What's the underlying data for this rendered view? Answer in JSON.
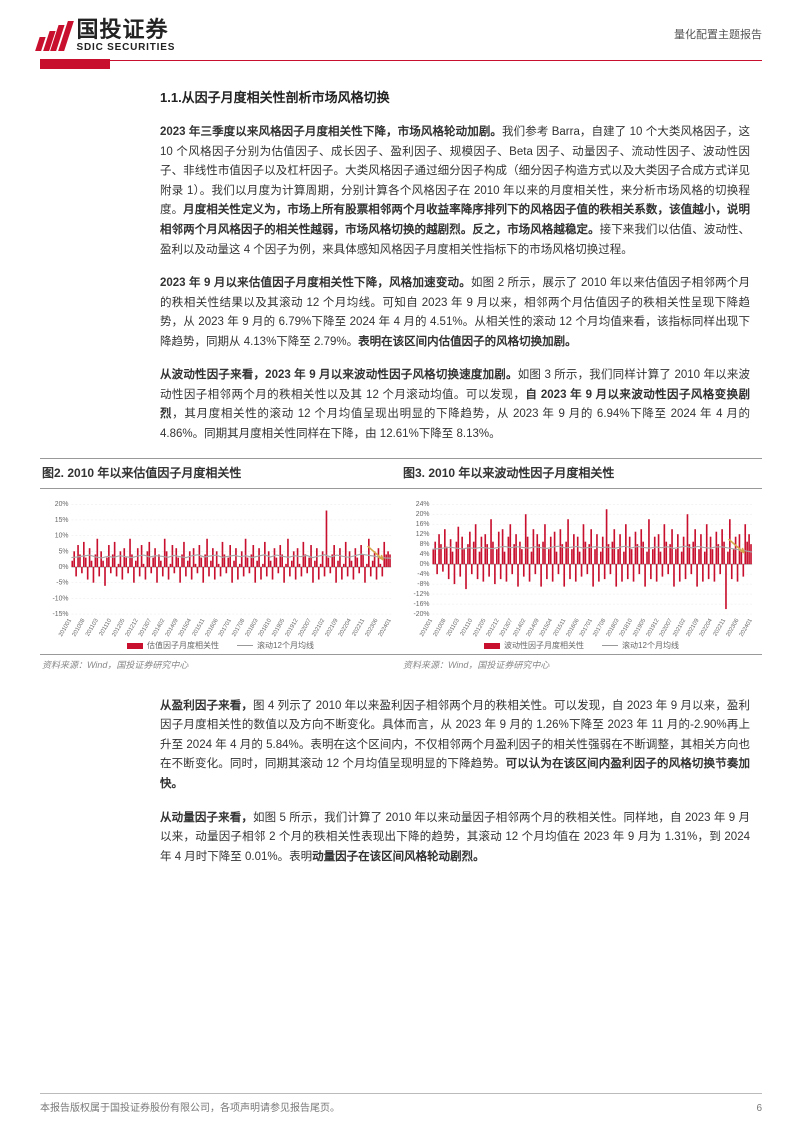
{
  "header": {
    "logo_cn": "国投证券",
    "logo_en": "SDIC SECURITIES",
    "report_type": "量化配置主题报告"
  },
  "section": {
    "title": "1.1.从因子月度相关性剖析市场风格切换"
  },
  "paragraphs": {
    "p1_lead": "2023 年三季度以来风格因子月度相关性下降，市场风格轮动加剧。",
    "p1_body": "我们参考 Barra，自建了 10 个大类风格因子，这 10 个风格因子分别为估值因子、成长因子、盈利因子、规模因子、Beta 因子、动量因子、流动性因子、波动性因子、非线性市值因子以及杠杆因子。大类风格因子通过细分因子构成（细分因子构造方式以及大类因子合成方式详见附录 1）。我们以月度为计算周期，分别计算各个风格因子在 2010 年以来的月度相关性，来分析市场风格的切换程度。",
    "p1_bold2": "月度相关性定义为，市场上所有股票相邻两个月收益率降序排列下的风格因子值的秩相关系数，该值越小，说明相邻两个月风格因子的相关性越弱，市场风格切换的越剧烈。反之，市场风格越稳定。",
    "p1_tail": "接下来我们以估值、波动性、盈利以及动量这 4 个因子为例，来具体感知风格因子月度相关性指标下的市场风格切换过程。",
    "p2_lead": "2023 年 9 月以来估值因子月度相关性下降，风格加速变动。",
    "p2_body": "如图 2 所示，展示了 2010 年以来估值因子相邻两个月的秩相关性结果以及其滚动 12 个月均线。可知自 2023 年 9 月以来，相邻两个月估值因子的秩相关性呈现下降趋势，从 2023 年 9 月的 6.79%下降至 2024 年 4 月的 4.51%。从相关性的滚动 12 个月均值来看，该指标同样出现下降趋势，同期从 4.13%下降至 2.79%。",
    "p2_bold2": "表明在该区间内估值因子的风格切换加剧。",
    "p3_lead": "从波动性因子来看，2023 年 9 月以来波动性因子风格切换速度加剧。",
    "p3_body": "如图 3 所示，我们同样计算了 2010 年以来波动性因子相邻两个月的秩相关性以及其 12 个月滚动均值。可以发现，",
    "p3_bold2": "自 2023 年 9 月以来波动性因子风格变换剧烈",
    "p3_tail": "，其月度相关性的滚动 12 个月均值呈现出明显的下降趋势，从 2023 年 9 月的 6.94%下降至 2024 年 4 月的 4.86%。同期其月度相关性同样在下降，由 12.61%下降至 8.13%。",
    "p4_lead": "从盈利因子来看，",
    "p4_body": "图 4 列示了 2010 年以来盈利因子相邻两个月的秩相关性。可以发现，自 2023 年 9 月以来，盈利因子月度相关性的数值以及方向不断变化。具体而言，从 2023 年 9 月的 1.26%下降至 2023 年 11 月的-2.90%再上升至 2024 年 4 月的 5.84%。表明在这个区间内，不仅相邻两个月盈利因子的相关性强弱在不断调整，其相关方向也在不断变化。同时，同期其滚动 12 个月均值呈现明显的下降趋势。",
    "p4_bold2": "可以认为在该区间内盈利因子的风格切换节奏加快。",
    "p5_lead": "从动量因子来看，",
    "p5_body": "如图 5 所示，我们计算了 2010 年以来动量因子相邻两个月的秩相关性。同样地，自 2023 年 9 月以来，动量因子相邻 2 个月的秩相关性表现出下降的趋势，其滚动 12 个月均值在 2023 年 9 月为 1.31%，到 2024 年 4 月时下降至 0.01%。表明",
    "p5_bold2": "动量因子在该区间风格轮动剧烈。"
  },
  "chart2": {
    "title": "图2. 2010 年以来估值因子月度相关性",
    "type": "bar-line",
    "ylim": [
      -15,
      20
    ],
    "yticks": [
      -15,
      -10,
      -5,
      0,
      5,
      10,
      15,
      20
    ],
    "x_labels": [
      "201001",
      "201008",
      "201103",
      "201110",
      "201205",
      "201212",
      "201307",
      "201402",
      "201409",
      "201504",
      "201511",
      "201606",
      "201701",
      "201708",
      "201803",
      "201810",
      "201905",
      "201912",
      "202007",
      "202102",
      "202109",
      "202204",
      "202211",
      "202306",
      "202401"
    ],
    "bar_color": "#c8102e",
    "line_color": "#a8a8a8",
    "arrow_color": "#d4a84a",
    "background": "#ffffff",
    "grid_color": "#e8e8e8",
    "legend_bar": "估值因子月度相关性",
    "legend_line": "滚动12个月均线",
    "source": "资料来源：Wind，国投证券研究中心",
    "bars": [
      2,
      5,
      -3,
      7,
      4,
      -2,
      8,
      3,
      -4,
      6,
      2,
      -5,
      4,
      9,
      -3,
      5,
      2,
      -6,
      3,
      7,
      -2,
      4,
      8,
      -3,
      1,
      5,
      -4,
      6,
      3,
      -2,
      9,
      4,
      -5,
      2,
      6,
      -3,
      7,
      1,
      -4,
      5,
      8,
      -2,
      3,
      6,
      -5,
      4,
      2,
      -3,
      9,
      5,
      -4,
      1,
      7,
      -2,
      6,
      3,
      -5,
      4,
      8,
      -3,
      2,
      5,
      -4,
      6,
      1,
      -2,
      7,
      3,
      -5,
      4,
      9,
      -3,
      2,
      6,
      -4,
      5,
      1,
      -3,
      8,
      4,
      -2,
      3,
      7,
      -5,
      2,
      6,
      -4,
      1,
      5,
      -3,
      9,
      3,
      -2,
      4,
      7,
      -5,
      2,
      6,
      -4,
      1,
      8,
      -3,
      5,
      2,
      -4,
      6,
      3,
      -2,
      7,
      4,
      -5,
      1,
      9,
      -3,
      2,
      5,
      -4,
      6,
      1,
      -3,
      8,
      4,
      -2,
      3,
      7,
      -5,
      2,
      6,
      -4,
      1,
      5,
      -3,
      18,
      3,
      -2,
      4,
      7,
      -5,
      2,
      6,
      -4,
      1,
      8,
      -3,
      5,
      2,
      -4,
      6,
      3,
      -2,
      7,
      4,
      -5,
      1,
      9,
      -3,
      2,
      5,
      -4,
      6,
      1,
      -3,
      8,
      4,
      5,
      4
    ],
    "line": [
      3,
      3.2,
      3.5,
      3.8,
      3.2,
      2.9,
      3.4,
      3.1,
      3.6,
      3.3,
      3.0,
      3.5,
      3.8,
      3.2,
      3.6,
      3.4,
      3.1,
      3.7,
      3.3,
      3.0,
      3.6,
      3.9,
      3.2,
      3.5,
      3.8,
      3.1,
      3.4,
      3.7,
      3.3,
      3.6,
      3.0,
      3.5,
      3.9,
      3.2,
      3.8,
      3.4,
      3.1,
      3.6,
      3.3,
      3.7,
      3.0,
      3.5,
      3.9,
      3.2,
      3.8,
      3.4,
      3.1,
      3.6,
      4.1,
      3.8,
      3.5,
      3.2,
      2.9,
      2.79
    ]
  },
  "chart3": {
    "title": "图3. 2010 年以来波动性因子月度相关性",
    "type": "bar-line",
    "ylim": [
      -20,
      24
    ],
    "yticks": [
      -20,
      -16,
      -12,
      -8,
      -4,
      0,
      4,
      8,
      12,
      16,
      20,
      24
    ],
    "x_labels": [
      "201001",
      "201008",
      "201103",
      "201110",
      "201205",
      "201212",
      "201307",
      "201402",
      "201409",
      "201504",
      "201511",
      "201606",
      "201701",
      "201708",
      "201803",
      "201810",
      "201905",
      "201912",
      "202007",
      "202102",
      "202109",
      "202204",
      "202211",
      "202306",
      "202401"
    ],
    "bar_color": "#c8102e",
    "line_color": "#a8a8a8",
    "arrow_color": "#d4a84a",
    "background": "#ffffff",
    "grid_color": "#e8e8e8",
    "legend_bar": "波动性因子月度相关性",
    "legend_line": "滚动12个月均线",
    "source": "资料来源：Wind，国投证券研究中心",
    "bars": [
      6,
      9,
      -4,
      12,
      8,
      -3,
      14,
      7,
      -6,
      10,
      5,
      -8,
      9,
      15,
      -5,
      11,
      6,
      -10,
      8,
      13,
      -4,
      9,
      16,
      -6,
      5,
      11,
      -7,
      12,
      8,
      -5,
      18,
      9,
      -8,
      6,
      13,
      -6,
      14,
      5,
      -7,
      11,
      16,
      -4,
      8,
      12,
      -9,
      9,
      6,
      -5,
      20,
      11,
      -7,
      5,
      14,
      -4,
      12,
      8,
      -9,
      9,
      16,
      -6,
      6,
      11,
      -7,
      13,
      5,
      -4,
      14,
      8,
      -9,
      9,
      18,
      -6,
      6,
      12,
      -7,
      11,
      5,
      -5,
      16,
      9,
      -4,
      8,
      14,
      -9,
      6,
      12,
      -7,
      5,
      11,
      -6,
      22,
      8,
      -4,
      9,
      14,
      -9,
      6,
      12,
      -7,
      5,
      16,
      -6,
      11,
      6,
      -7,
      13,
      8,
      -4,
      14,
      9,
      -9,
      5,
      18,
      -6,
      6,
      11,
      -7,
      12,
      5,
      -5,
      16,
      9,
      -4,
      8,
      14,
      -9,
      6,
      12,
      -7,
      5,
      11,
      -6,
      20,
      8,
      -4,
      9,
      14,
      -9,
      6,
      12,
      -7,
      5,
      16,
      -6,
      11,
      6,
      -7,
      13,
      8,
      -4,
      14,
      9,
      -18,
      5,
      18,
      -6,
      6,
      11,
      -7,
      12,
      5,
      -5,
      16,
      9,
      12,
      8
    ],
    "line": [
      6,
      6.2,
      6.5,
      6.8,
      6.4,
      6.1,
      6.6,
      6.3,
      6.7,
      6.5,
      6.2,
      6.8,
      7.1,
      6.6,
      7.0,
      6.7,
      6.4,
      7.0,
      6.6,
      6.3,
      6.9,
      7.2,
      6.5,
      6.8,
      7.1,
      6.4,
      6.7,
      7.0,
      6.6,
      6.9,
      6.2,
      6.8,
      7.2,
      6.5,
      7.1,
      6.7,
      6.4,
      6.9,
      6.6,
      7.0,
      6.3,
      6.8,
      7.2,
      6.5,
      7.1,
      6.7,
      6.4,
      6.9,
      6.94,
      6.5,
      6.1,
      5.7,
      5.3,
      4.86
    ]
  },
  "footer": {
    "left": "本报告版权属于国投证券股份有限公司，各项声明请参见报告尾页。",
    "page": "6"
  },
  "colors": {
    "brand_red": "#c8102e",
    "text": "#333333",
    "grid": "#e8e8e8",
    "axis": "#666666"
  }
}
